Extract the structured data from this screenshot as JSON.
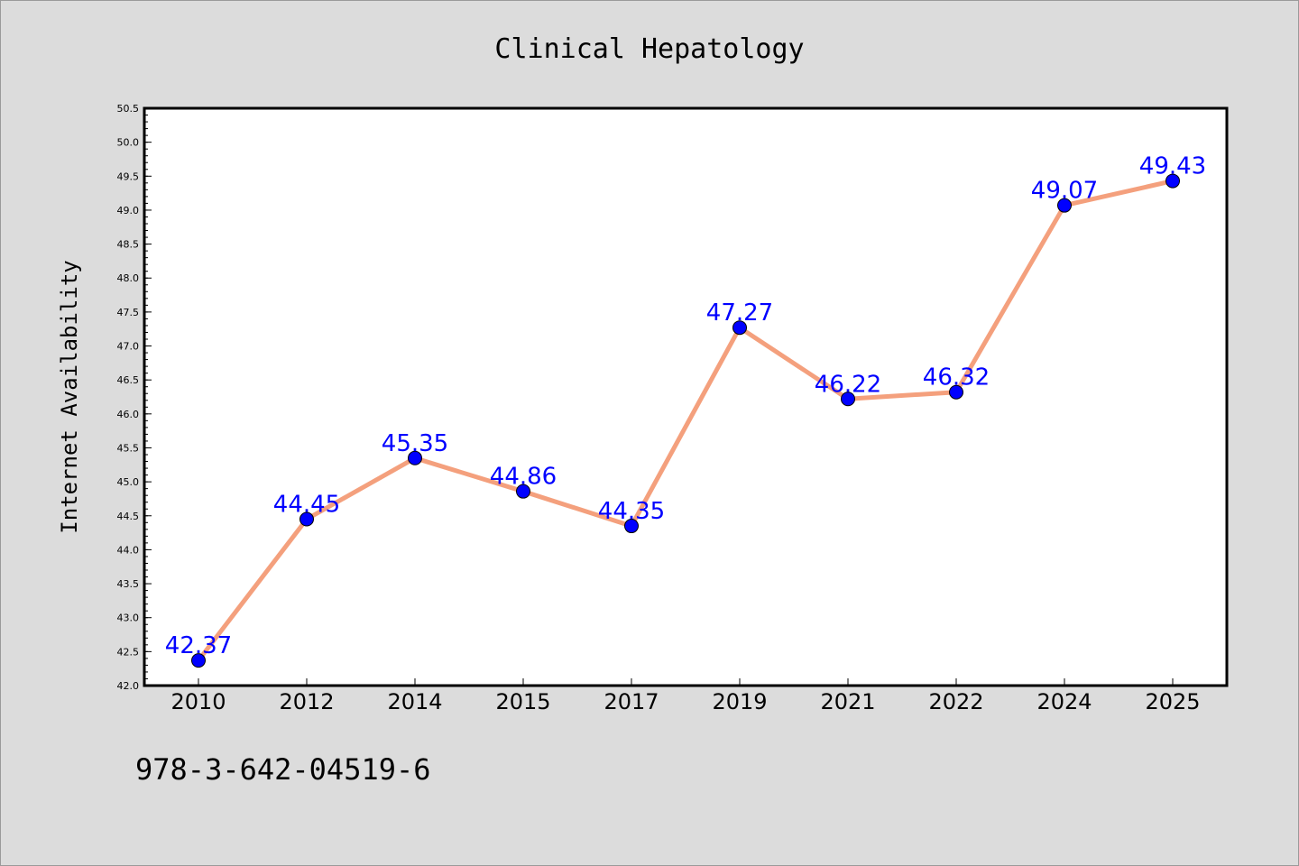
{
  "chart_data": {
    "type": "line",
    "title": "Clinical Hepatology",
    "xlabel": "",
    "ylabel": "Internet Availability",
    "categories": [
      "2010",
      "2012",
      "2014",
      "2015",
      "2017",
      "2019",
      "2021",
      "2022",
      "2024",
      "2025"
    ],
    "series": [
      {
        "values": [
          42.37,
          44.45,
          45.35,
          44.86,
          44.35,
          47.27,
          46.22,
          46.32,
          49.07,
          49.43
        ],
        "line_color": "#f4a07d",
        "marker_color": "#0000ff"
      }
    ],
    "data_labels": [
      "42.37",
      "44.45",
      "45.35",
      "44.86",
      "44.35",
      "47.27",
      "46.22",
      "46.32",
      "49.07",
      "49.43"
    ],
    "ylim": [
      42.0,
      50.5
    ],
    "yticks": [
      "42.0",
      "42.5",
      "43.0",
      "43.5",
      "44.0",
      "44.5",
      "45.0",
      "45.5",
      "46.0",
      "46.5",
      "47.0",
      "47.5",
      "48.0",
      "48.5",
      "49.0",
      "49.5",
      "50.0",
      "50.5"
    ],
    "grid": false,
    "legend": "none",
    "data_label_color": "#0000ff"
  },
  "footer": {
    "code": "978-3-642-04519-6"
  }
}
